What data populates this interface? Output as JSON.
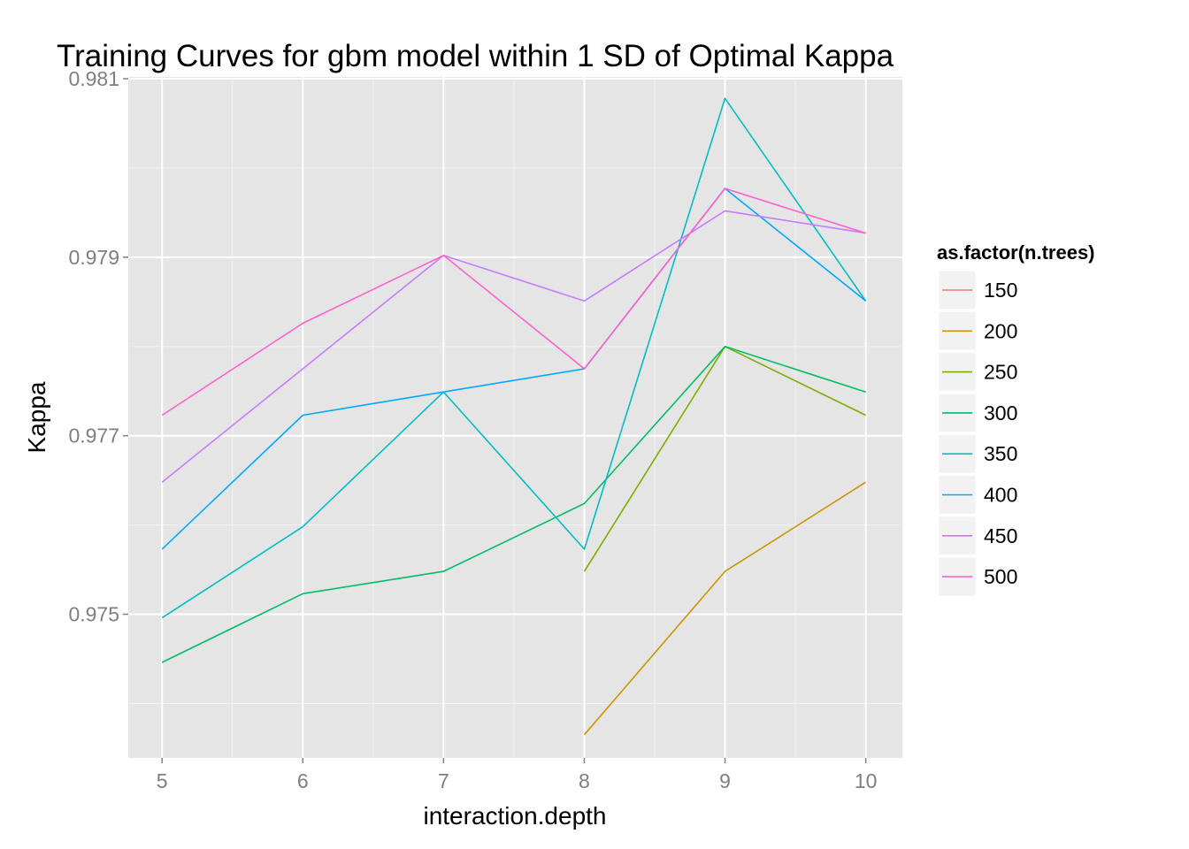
{
  "chart_data": {
    "type": "line",
    "title": "Training Curves for gbm model within 1 SD of Optimal Kappa",
    "xlabel": "interaction.depth",
    "ylabel": "Kappa",
    "x_ticks": [
      5,
      6,
      7,
      8,
      9,
      10
    ],
    "y_ticks": [
      "0.975",
      "0.977",
      "0.979",
      "0.981"
    ],
    "y_tick_values": [
      0.975,
      0.977,
      0.979,
      0.981
    ],
    "xlim": [
      4.76,
      10.26
    ],
    "ylim": [
      0.97339,
      0.98102
    ],
    "grid": true,
    "legend": {
      "title": "as.factor(n.trees)",
      "position": "right"
    },
    "series": [
      {
        "name": "150",
        "color": "#F8766D",
        "points": []
      },
      {
        "name": "200",
        "color": "#CD9600",
        "points": [
          [
            8,
            0.97365
          ],
          [
            9,
            0.97548
          ],
          [
            10,
            0.97648
          ]
        ]
      },
      {
        "name": "250",
        "color": "#7CAE00",
        "points": [
          [
            8,
            0.97548
          ],
          [
            9,
            0.978
          ],
          [
            10,
            0.97723
          ]
        ]
      },
      {
        "name": "300",
        "color": "#00BE67",
        "points": [
          [
            5,
            0.97446
          ],
          [
            6,
            0.97523
          ],
          [
            7,
            0.97548
          ],
          [
            8,
            0.97624
          ],
          [
            9,
            0.978
          ],
          [
            10,
            0.97749
          ]
        ]
      },
      {
        "name": "350",
        "color": "#00BFC4",
        "points": [
          [
            5,
            0.97496
          ],
          [
            6,
            0.97598
          ],
          [
            7,
            0.97749
          ],
          [
            8,
            0.97573
          ],
          [
            9,
            0.98078
          ],
          [
            10,
            0.97851
          ]
        ]
      },
      {
        "name": "400",
        "color": "#00A9FF",
        "points": [
          [
            5,
            0.97573
          ],
          [
            6,
            0.97723
          ],
          [
            7,
            0.97749
          ],
          [
            8,
            0.97775
          ],
          [
            9,
            0.97977
          ],
          [
            10,
            0.97851
          ]
        ]
      },
      {
        "name": "450",
        "color": "#C77CFF",
        "points": [
          [
            5,
            0.97648
          ],
          [
            6,
            0.97775
          ],
          [
            7,
            0.97902
          ],
          [
            8,
            0.97851
          ],
          [
            9,
            0.97952
          ],
          [
            10,
            0.97927
          ]
        ]
      },
      {
        "name": "500",
        "color": "#FF61CC",
        "points": [
          [
            5,
            0.97723
          ],
          [
            6,
            0.97826
          ],
          [
            7,
            0.97902
          ],
          [
            8,
            0.97775
          ],
          [
            9,
            0.97977
          ],
          [
            10,
            0.97927
          ]
        ]
      }
    ]
  }
}
